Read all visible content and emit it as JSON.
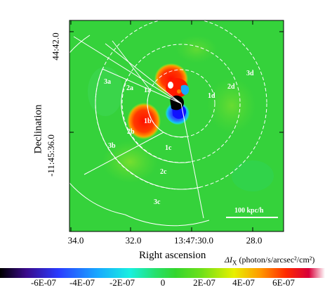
{
  "axes": {
    "xlabel": "Right ascension",
    "ylabel": "Declination",
    "xticks": [
      "34.0",
      "32.0",
      "13:47:30.0",
      "28.0"
    ],
    "yticks": [
      "44:42.0",
      "-11:45:36.0"
    ]
  },
  "regions": [
    "1a",
    "1b",
    "1c",
    "1d",
    "2a",
    "2b",
    "2c",
    "2d",
    "3a",
    "3b",
    "3c",
    "3d"
  ],
  "scalebar_label": "100 kpc/h",
  "colorbar": {
    "label": "ΔI",
    "label_sub": "X",
    "label_units": " (photon/s/arcsec²/cm²)",
    "ticks": [
      "-6E-07",
      "-4E-07",
      "-2E-07",
      "0",
      "2E-07",
      "4E-07",
      "6E-07"
    ],
    "stops": [
      "#000000",
      "#3a0a8a",
      "#2a3cff",
      "#18a8ff",
      "#18f0e0",
      "#27e06a",
      "#34d62e",
      "#6fe01a",
      "#e8f000",
      "#ff9a00",
      "#ff2a00",
      "#d8003a",
      "#ffffff"
    ]
  },
  "colors": {
    "background_field": "#35d23b",
    "excess": "#ff2400",
    "deficit": "#1a1aff"
  }
}
